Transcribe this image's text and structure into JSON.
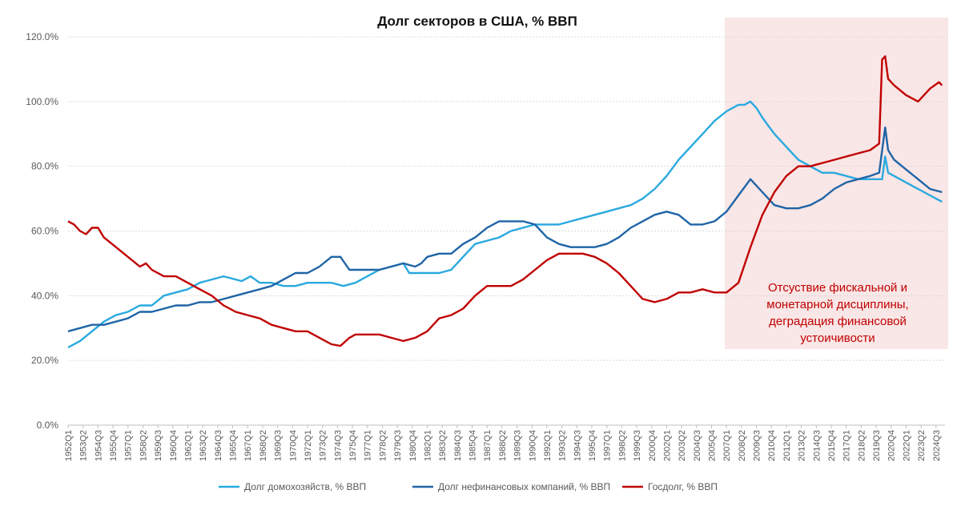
{
  "chart_data": {
    "type": "line",
    "title": "Долг секторов в США, % ВВП",
    "y_ticks": [
      "0.0%",
      "20.0%",
      "40.0%",
      "60.0%",
      "80.0%",
      "100.0%",
      "120.0%"
    ],
    "ylim": [
      0,
      120
    ],
    "x_tick_labels": [
      "1952Q1",
      "1953Q2",
      "1954Q3",
      "1955Q4",
      "1957Q1",
      "1958Q2",
      "1959Q3",
      "1960Q4",
      "1962Q1",
      "1963Q2",
      "1964Q3",
      "1965Q4",
      "1967Q1",
      "1968Q2",
      "1969Q3",
      "1970Q4",
      "1972Q1",
      "1973Q2",
      "1974Q3",
      "1975Q4",
      "1977Q1",
      "1978Q2",
      "1979Q3",
      "1980Q4",
      "1982Q1",
      "1983Q2",
      "1984Q3",
      "1985Q4",
      "1987Q1",
      "1988Q2",
      "1989Q3",
      "1990Q4",
      "1992Q1",
      "1993Q2",
      "1994Q3",
      "1995Q4",
      "1997Q1",
      "1998Q2",
      "1999Q3",
      "2000Q4",
      "2002Q1",
      "2003Q2",
      "2004Q3",
      "2005Q4",
      "2007Q1",
      "2008Q2",
      "2009Q3",
      "2010Q4",
      "2012Q1",
      "2013Q2",
      "2014Q3",
      "2015Q4",
      "2017Q1",
      "2018Q2",
      "2019Q3",
      "2020Q4",
      "2022Q1",
      "2023Q2",
      "2024Q3"
    ],
    "xlim": [
      1952.0,
      2025.25
    ],
    "grid": true,
    "legend_position": "bottom",
    "shaded_region": {
      "from": 2007.25,
      "to": 2025.25,
      "color": "#f9e6e6"
    },
    "annotation": {
      "lines": [
        "Отсуствие фискальной и",
        "монетарной дисциплины,",
        "деградация финансовой",
        "устоичивости"
      ],
      "color": "#c00000"
    },
    "series": [
      {
        "name": "Долг  домохозяйств, %  ВВП",
        "color": "#29a9df",
        "points": [
          [
            1952.0,
            24
          ],
          [
            1953.0,
            26
          ],
          [
            1954.0,
            29
          ],
          [
            1955.0,
            32
          ],
          [
            1956.0,
            34
          ],
          [
            1957.0,
            35
          ],
          [
            1958.0,
            37
          ],
          [
            1959.0,
            37
          ],
          [
            1960.0,
            40
          ],
          [
            1961.0,
            41
          ],
          [
            1962.0,
            42
          ],
          [
            1963.0,
            44
          ],
          [
            1964.0,
            45
          ],
          [
            1965.0,
            46
          ],
          [
            1966.0,
            45
          ],
          [
            1966.5,
            44.5
          ],
          [
            1967.25,
            46
          ],
          [
            1968.0,
            44
          ],
          [
            1969.0,
            44
          ],
          [
            1970.0,
            43
          ],
          [
            1971.0,
            43
          ],
          [
            1972.0,
            44
          ],
          [
            1973.0,
            44
          ],
          [
            1974.0,
            44
          ],
          [
            1975.0,
            43
          ],
          [
            1976.0,
            44
          ],
          [
            1977.0,
            46
          ],
          [
            1978.0,
            48
          ],
          [
            1979.0,
            49
          ],
          [
            1980.0,
            50
          ],
          [
            1980.5,
            47
          ],
          [
            1981.0,
            47
          ],
          [
            1982.0,
            47
          ],
          [
            1983.0,
            47
          ],
          [
            1984.0,
            48
          ],
          [
            1985.0,
            52
          ],
          [
            1986.0,
            56
          ],
          [
            1987.0,
            57
          ],
          [
            1988.0,
            58
          ],
          [
            1989.0,
            60
          ],
          [
            1990.0,
            61
          ],
          [
            1991.0,
            62
          ],
          [
            1992.0,
            62
          ],
          [
            1993.0,
            62
          ],
          [
            1994.0,
            63
          ],
          [
            1995.0,
            64
          ],
          [
            1996.0,
            65
          ],
          [
            1997.0,
            66
          ],
          [
            1998.0,
            67
          ],
          [
            1999.0,
            68
          ],
          [
            2000.0,
            70
          ],
          [
            2001.0,
            73
          ],
          [
            2002.0,
            77
          ],
          [
            2003.0,
            82
          ],
          [
            2004.0,
            86
          ],
          [
            2005.0,
            90
          ],
          [
            2006.0,
            94
          ],
          [
            2007.0,
            97
          ],
          [
            2008.0,
            99
          ],
          [
            2008.5,
            99
          ],
          [
            2009.0,
            100
          ],
          [
            2009.5,
            98
          ],
          [
            2010.0,
            95
          ],
          [
            2011.0,
            90
          ],
          [
            2012.0,
            86
          ],
          [
            2013.0,
            82
          ],
          [
            2014.0,
            80
          ],
          [
            2015.0,
            78
          ],
          [
            2016.0,
            78
          ],
          [
            2017.0,
            77
          ],
          [
            2018.0,
            76
          ],
          [
            2019.0,
            76
          ],
          [
            2020.0,
            76
          ],
          [
            2020.25,
            83
          ],
          [
            2020.5,
            78
          ],
          [
            2021.0,
            77
          ],
          [
            2022.0,
            75
          ],
          [
            2023.0,
            73
          ],
          [
            2024.0,
            71
          ],
          [
            2025.0,
            69
          ]
        ]
      },
      {
        "name": "Долг нефинансовых компаний, %  ВВП",
        "color": "#1f64a6",
        "points": [
          [
            1952.0,
            29
          ],
          [
            1953.0,
            30
          ],
          [
            1954.0,
            31
          ],
          [
            1955.0,
            31
          ],
          [
            1956.0,
            32
          ],
          [
            1957.0,
            33
          ],
          [
            1958.0,
            35
          ],
          [
            1959.0,
            35
          ],
          [
            1960.0,
            36
          ],
          [
            1961.0,
            37
          ],
          [
            1962.0,
            37
          ],
          [
            1963.0,
            38
          ],
          [
            1964.0,
            38
          ],
          [
            1965.0,
            39
          ],
          [
            1966.0,
            40
          ],
          [
            1967.0,
            41
          ],
          [
            1968.0,
            42
          ],
          [
            1969.0,
            43
          ],
          [
            1970.0,
            45
          ],
          [
            1971.0,
            47
          ],
          [
            1972.0,
            47
          ],
          [
            1973.0,
            49
          ],
          [
            1974.0,
            52
          ],
          [
            1974.75,
            52
          ],
          [
            1975.5,
            48
          ],
          [
            1976.0,
            48
          ],
          [
            1977.0,
            48
          ],
          [
            1978.0,
            48
          ],
          [
            1979.0,
            49
          ],
          [
            1980.0,
            50
          ],
          [
            1981.0,
            49
          ],
          [
            1981.5,
            50
          ],
          [
            1982.0,
            52
          ],
          [
            1983.0,
            53
          ],
          [
            1984.0,
            53
          ],
          [
            1985.0,
            56
          ],
          [
            1986.0,
            58
          ],
          [
            1987.0,
            61
          ],
          [
            1988.0,
            63
          ],
          [
            1989.0,
            63
          ],
          [
            1990.0,
            63
          ],
          [
            1991.0,
            62
          ],
          [
            1992.0,
            58
          ],
          [
            1993.0,
            56
          ],
          [
            1994.0,
            55
          ],
          [
            1995.0,
            55
          ],
          [
            1996.0,
            55
          ],
          [
            1997.0,
            56
          ],
          [
            1998.0,
            58
          ],
          [
            1999.0,
            61
          ],
          [
            2000.0,
            63
          ],
          [
            2001.0,
            65
          ],
          [
            2002.0,
            66
          ],
          [
            2003.0,
            65
          ],
          [
            2004.0,
            62
          ],
          [
            2005.0,
            62
          ],
          [
            2006.0,
            63
          ],
          [
            2007.0,
            66
          ],
          [
            2008.0,
            71
          ],
          [
            2009.0,
            76
          ],
          [
            2010.0,
            72
          ],
          [
            2011.0,
            68
          ],
          [
            2012.0,
            67
          ],
          [
            2013.0,
            67
          ],
          [
            2014.0,
            68
          ],
          [
            2015.0,
            70
          ],
          [
            2016.0,
            73
          ],
          [
            2017.0,
            75
          ],
          [
            2018.0,
            76
          ],
          [
            2019.0,
            77
          ],
          [
            2019.75,
            78
          ],
          [
            2020.25,
            92
          ],
          [
            2020.5,
            85
          ],
          [
            2021.0,
            82
          ],
          [
            2022.0,
            79
          ],
          [
            2023.0,
            76
          ],
          [
            2024.0,
            73
          ],
          [
            2025.0,
            72
          ]
        ]
      },
      {
        "name": "Госдолг, %  ВВП",
        "color": "#c00000",
        "points": [
          [
            1952.0,
            63
          ],
          [
            1952.5,
            62
          ],
          [
            1953.0,
            60
          ],
          [
            1953.5,
            59
          ],
          [
            1954.0,
            61
          ],
          [
            1954.5,
            61
          ],
          [
            1955.0,
            58
          ],
          [
            1956.0,
            55
          ],
          [
            1957.0,
            52
          ],
          [
            1958.0,
            49
          ],
          [
            1958.5,
            50
          ],
          [
            1959.0,
            48
          ],
          [
            1960.0,
            46
          ],
          [
            1961.0,
            46
          ],
          [
            1962.0,
            44
          ],
          [
            1963.0,
            42
          ],
          [
            1964.0,
            40
          ],
          [
            1965.0,
            37
          ],
          [
            1966.0,
            35
          ],
          [
            1967.0,
            34
          ],
          [
            1968.0,
            33
          ],
          [
            1969.0,
            31
          ],
          [
            1970.0,
            30
          ],
          [
            1971.0,
            29
          ],
          [
            1972.0,
            29
          ],
          [
            1973.0,
            27
          ],
          [
            1974.0,
            25
          ],
          [
            1974.75,
            24.5
          ],
          [
            1975.5,
            27
          ],
          [
            1976.0,
            28
          ],
          [
            1977.0,
            28
          ],
          [
            1978.0,
            28
          ],
          [
            1979.0,
            27
          ],
          [
            1980.0,
            26
          ],
          [
            1981.0,
            27
          ],
          [
            1982.0,
            29
          ],
          [
            1983.0,
            33
          ],
          [
            1984.0,
            34
          ],
          [
            1985.0,
            36
          ],
          [
            1986.0,
            40
          ],
          [
            1987.0,
            43
          ],
          [
            1988.0,
            43
          ],
          [
            1989.0,
            43
          ],
          [
            1990.0,
            45
          ],
          [
            1991.0,
            48
          ],
          [
            1992.0,
            51
          ],
          [
            1993.0,
            53
          ],
          [
            1994.0,
            53
          ],
          [
            1995.0,
            53
          ],
          [
            1996.0,
            52
          ],
          [
            1997.0,
            50
          ],
          [
            1998.0,
            47
          ],
          [
            1999.0,
            43
          ],
          [
            2000.0,
            39
          ],
          [
            2001.0,
            38
          ],
          [
            2002.0,
            39
          ],
          [
            2003.0,
            41
          ],
          [
            2004.0,
            41
          ],
          [
            2005.0,
            42
          ],
          [
            2006.0,
            41
          ],
          [
            2007.0,
            41
          ],
          [
            2008.0,
            44
          ],
          [
            2009.0,
            55
          ],
          [
            2010.0,
            65
          ],
          [
            2011.0,
            72
          ],
          [
            2012.0,
            77
          ],
          [
            2013.0,
            80
          ],
          [
            2014.0,
            80
          ],
          [
            2015.0,
            81
          ],
          [
            2016.0,
            82
          ],
          [
            2017.0,
            83
          ],
          [
            2018.0,
            84
          ],
          [
            2019.0,
            85
          ],
          [
            2019.75,
            87
          ],
          [
            2020.0,
            113
          ],
          [
            2020.25,
            114
          ],
          [
            2020.5,
            107
          ],
          [
            2021.0,
            105
          ],
          [
            2022.0,
            102
          ],
          [
            2023.0,
            100
          ],
          [
            2024.0,
            104
          ],
          [
            2024.75,
            106
          ],
          [
            2025.0,
            105
          ]
        ]
      }
    ]
  }
}
